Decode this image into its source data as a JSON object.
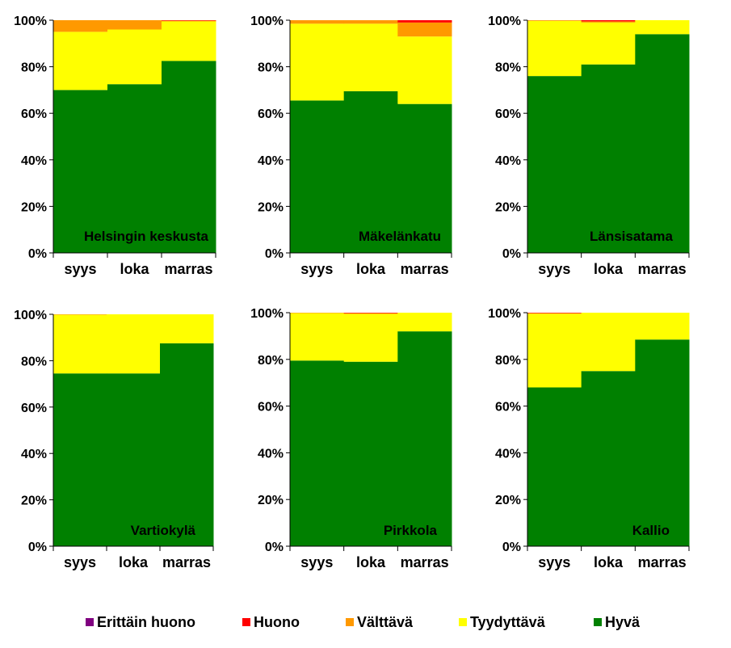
{
  "chart_data": {
    "type": "stacked-bar-100",
    "y_ticks": [
      "0%",
      "20%",
      "40%",
      "60%",
      "80%",
      "100%"
    ],
    "ylim": [
      0,
      100
    ],
    "categories": [
      "syys",
      "loka",
      "marras"
    ],
    "series_names": [
      "Hyvä",
      "Tyydyttävä",
      "Välttävä",
      "Huono",
      "Erittäin huono"
    ],
    "colors": {
      "Hyvä": "#008000",
      "Tyydyttävä": "#ffff00",
      "Välttävä": "#ff9900",
      "Huono": "#ff0000",
      "Erittäin huono": "#800080"
    },
    "panels": [
      {
        "title": "Helsingin keskusta",
        "series": [
          {
            "name": "Hyvä",
            "values": [
              70,
              72.5,
              82.5
            ]
          },
          {
            "name": "Tyydyttävä",
            "values": [
              25,
              23.5,
              17
            ]
          },
          {
            "name": "Välttävä",
            "values": [
              5,
              4,
              0.3
            ]
          },
          {
            "name": "Huono",
            "values": [
              0,
              0,
              0.2
            ]
          },
          {
            "name": "Erittäin huono",
            "values": [
              0,
              0,
              0
            ]
          }
        ]
      },
      {
        "title": "Mäkelänkatu",
        "series": [
          {
            "name": "Hyvä",
            "values": [
              65.5,
              69.5,
              64
            ]
          },
          {
            "name": "Tyydyttävä",
            "values": [
              33,
              29,
              29
            ]
          },
          {
            "name": "Välttävä",
            "values": [
              1.5,
              1.5,
              6
            ]
          },
          {
            "name": "Huono",
            "values": [
              0,
              0,
              1
            ]
          },
          {
            "name": "Erittäin huono",
            "values": [
              0,
              0,
              0
            ]
          }
        ]
      },
      {
        "title": "Länsisatama",
        "series": [
          {
            "name": "Hyvä",
            "values": [
              76,
              81,
              94
            ]
          },
          {
            "name": "Tyydyttävä",
            "values": [
              23.7,
              18,
              6
            ]
          },
          {
            "name": "Välttävä",
            "values": [
              0.3,
              0.5,
              0
            ]
          },
          {
            "name": "Huono",
            "values": [
              0,
              0.5,
              0
            ]
          },
          {
            "name": "Erittäin huono",
            "values": [
              0,
              0,
              0
            ]
          }
        ]
      },
      {
        "title": "Vartiokylä",
        "series": [
          {
            "name": "Hyvä",
            "values": [
              74.5,
              74.5,
              87.5
            ]
          },
          {
            "name": "Tyydyttävä",
            "values": [
              25.3,
              25.5,
              12.5
            ]
          },
          {
            "name": "Välttävä",
            "values": [
              0.2,
              0,
              0
            ]
          },
          {
            "name": "Huono",
            "values": [
              0,
              0,
              0
            ]
          },
          {
            "name": "Erittäin huono",
            "values": [
              0,
              0,
              0
            ]
          }
        ]
      },
      {
        "title": "Pirkkola",
        "series": [
          {
            "name": "Hyvä",
            "values": [
              79.5,
              79,
              92
            ]
          },
          {
            "name": "Tyydyttävä",
            "values": [
              20.3,
              20.5,
              8
            ]
          },
          {
            "name": "Välttävä",
            "values": [
              0.2,
              0.3,
              0
            ]
          },
          {
            "name": "Huono",
            "values": [
              0,
              0.2,
              0
            ]
          },
          {
            "name": "Erittäin huono",
            "values": [
              0,
              0,
              0
            ]
          }
        ]
      },
      {
        "title": "Kallio",
        "series": [
          {
            "name": "Hyvä",
            "values": [
              68,
              75,
              88.5
            ]
          },
          {
            "name": "Tyydyttävä",
            "values": [
              31.6,
              25,
              11.5
            ]
          },
          {
            "name": "Välttävä",
            "values": [
              0.2,
              0,
              0
            ]
          },
          {
            "name": "Huono",
            "values": [
              0.2,
              0,
              0
            ]
          },
          {
            "name": "Erittäin huono",
            "values": [
              0,
              0,
              0
            ]
          }
        ]
      }
    ],
    "legend": [
      "Erittäin huono",
      "Huono",
      "Välttävä",
      "Tyydyttävä",
      "Hyvä"
    ],
    "legend_position": "bottom"
  }
}
